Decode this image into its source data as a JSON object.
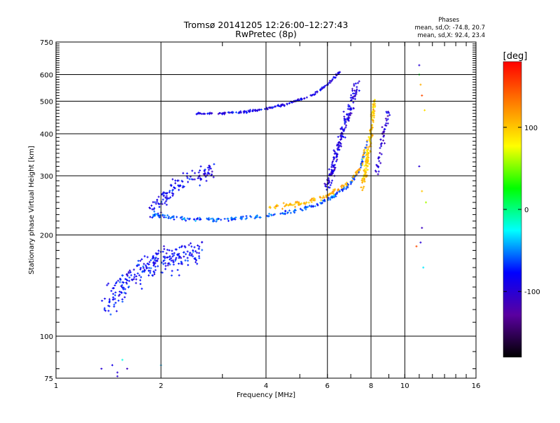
{
  "chart_data": {
    "type": "scatter",
    "title": "Tromsø 20141205 12:26:00–12:27:43",
    "subtitle": "RwPretec (8p)",
    "xlabel": "Frequency [MHz]",
    "ylabel": "Stationary phase Virtual Height [km]",
    "x_scale": "log",
    "y_scale": "log",
    "xlim": [
      1,
      16
    ],
    "ylim": [
      75,
      750
    ],
    "x_ticks": [
      1,
      2,
      4,
      6,
      8,
      10,
      16
    ],
    "x_tick_labels": [
      "1",
      "2",
      "4",
      "6",
      "8",
      "10",
      "16"
    ],
    "y_ticks": [
      75,
      100,
      200,
      300,
      400,
      500,
      600,
      750
    ],
    "y_tick_labels": [
      "75",
      "100",
      "200",
      "300",
      "400",
      "500",
      "600",
      "750"
    ],
    "grid": true,
    "stats": {
      "heading": "Phases",
      "line_o": "mean, sd,O: -74.8, 20.7",
      "line_x": "mean, sd,X:  92.4, 23.4"
    },
    "colorbar": {
      "label": "[deg]",
      "range": [
        -180,
        180
      ],
      "ticks": [
        100,
        0,
        -100
      ],
      "tick_labels": [
        "100",
        "0",
        "-100"
      ],
      "colors": [
        "#ff0000",
        "#ff8000",
        "#ffff00",
        "#00ff00",
        "#00ffff",
        "#0000ff",
        "#5a00a0",
        "#000000"
      ]
    },
    "series": [
      {
        "kind": "trace",
        "x": [
          1.4,
          1.5,
          1.6,
          1.75,
          1.9,
          2.1,
          2.3,
          2.6
        ],
        "y": [
          130,
          135,
          145,
          155,
          165,
          170,
          172,
          180
        ],
        "phase": -80,
        "jitter_y": 22,
        "jitter_x": 0.05,
        "count": 260
      },
      {
        "kind": "trace",
        "x": [
          1.85,
          2.0,
          2.2,
          2.5,
          2.8
        ],
        "y": [
          235,
          255,
          280,
          300,
          310
        ],
        "phase": -85,
        "jitter_y": 25,
        "jitter_x": 0.04,
        "count": 120
      },
      {
        "kind": "trace",
        "x": [
          1.9,
          2.0,
          2.2,
          2.5,
          3.0,
          3.5,
          4.0,
          4.5,
          5.0,
          5.5,
          6.0,
          6.5,
          7.0,
          7.5,
          7.8
        ],
        "y": [
          230,
          228,
          225,
          222,
          222,
          225,
          228,
          232,
          238,
          245,
          255,
          268,
          285,
          320,
          380
        ],
        "phase": -60,
        "jitter_y": 4,
        "jitter_x": 0.01,
        "count": 240
      },
      {
        "kind": "trace",
        "x": [
          4.0,
          4.5,
          5.0,
          5.5,
          6.0,
          6.5,
          7.0,
          7.5,
          7.9
        ],
        "y": [
          240,
          245,
          248,
          255,
          262,
          275,
          290,
          320,
          400
        ],
        "phase": 110,
        "jitter_y": 6,
        "jitter_x": 0.01,
        "count": 120
      },
      {
        "kind": "trace",
        "x": [
          2.5,
          3.0,
          3.5,
          4.0,
          4.5,
          5.0,
          5.5,
          6.0,
          6.5
        ],
        "y": [
          460,
          460,
          465,
          475,
          488,
          505,
          525,
          560,
          610
        ],
        "phase": -90,
        "jitter_y": 5,
        "jitter_x": 0.01,
        "count": 170
      },
      {
        "kind": "trace",
        "x": [
          6.0,
          6.3,
          6.6,
          7.0,
          7.3
        ],
        "y": [
          280,
          330,
          400,
          480,
          560
        ],
        "phase": -95,
        "jitter_y": 25,
        "jitter_x": 0.03,
        "count": 180
      },
      {
        "kind": "trace",
        "x": [
          7.6,
          7.8,
          8.0,
          8.2
        ],
        "y": [
          280,
          330,
          400,
          500
        ],
        "phase": 100,
        "jitter_y": 25,
        "jitter_x": 0.02,
        "count": 150
      },
      {
        "kind": "trace",
        "x": [
          8.3,
          8.6,
          9.0
        ],
        "y": [
          300,
          380,
          470
        ],
        "phase": -100,
        "jitter_y": 25,
        "jitter_x": 0.02,
        "count": 50
      },
      {
        "kind": "points",
        "x": [
          11.0,
          11.1,
          11.2,
          11.4,
          11.0,
          11.2,
          11.5,
          11.1,
          11.3,
          10.8,
          11.2,
          11.0
        ],
        "y": [
          640,
          560,
          520,
          470,
          320,
          270,
          250,
          190,
          160,
          185,
          210,
          600
        ],
        "phase": [
          -100,
          110,
          150,
          90,
          -100,
          100,
          60,
          -100,
          -30,
          150,
          -110,
          20
        ]
      },
      {
        "kind": "points",
        "x": [
          1.35,
          1.45,
          1.5,
          1.55,
          1.6,
          1.5,
          2.0
        ],
        "y": [
          80,
          82,
          78,
          85,
          80,
          76,
          82
        ],
        "phase": [
          -100,
          -90,
          -100,
          -20,
          -110,
          -100,
          -40
        ]
      }
    ]
  }
}
